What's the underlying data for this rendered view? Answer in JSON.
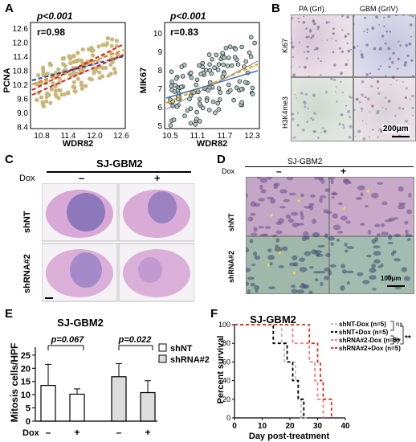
{
  "panels": {
    "A": "A",
    "B": "B",
    "C": "C",
    "D": "D",
    "E": "E",
    "F": "F"
  },
  "panelA": {
    "left": {
      "p": "p<0.001",
      "r": "r=0.98",
      "xlabel": "WDR82",
      "ylabel": "PCNA",
      "xticks": [
        "10.8",
        "11.4",
        "12.0",
        "12.6"
      ],
      "yticks": [
        "12.6",
        "12.0",
        "11.4",
        "10.8",
        "10.2",
        "9.6",
        "9.0",
        "8.4"
      ],
      "dot_color": "#c8b77a"
    },
    "right": {
      "p": "p<0.001",
      "r": "r=0.83",
      "xlabel": "WDR82",
      "ylabel": "MIK67",
      "xticks": [
        "10.5",
        "11.1",
        "11.7",
        "12.3"
      ],
      "yticks": [
        "10",
        "9",
        "8",
        "7",
        "6",
        "5"
      ]
    }
  },
  "panelB": {
    "col1": "PA (GrI)",
    "col2": "GBM (GrIV)",
    "row1": "Ki67",
    "row2": "H3K4me3",
    "scale": "200μm"
  },
  "panelC": {
    "title": "SJ-GBM2",
    "dox": "Dox",
    "minus": "–",
    "plus": "+",
    "row1": "shNT",
    "row2": "shRNA#2"
  },
  "panelD": {
    "title": "SJ-GBM2",
    "dox": "Dox",
    "minus": "–",
    "plus": "+",
    "row1": "shNT",
    "row2": "shRNA#2",
    "scale": "100μm"
  },
  "panelE": {
    "title": "SJ-GBM2",
    "ylabel": "Mitosis cells/HPF",
    "p1": "p=0.067",
    "p2": "p=0.022",
    "dox": "Dox",
    "xtick_labels": [
      "–",
      "+",
      "–",
      "+"
    ],
    "yticks": [
      "0",
      "5",
      "10",
      "15",
      "20",
      "25"
    ],
    "legend": [
      "shNT",
      "shRNA#2"
    ]
  },
  "panelF": {
    "title": "SJ-GBM2",
    "ylabel": "Percent survival",
    "xlabel": "Day post-treatment",
    "xticks": [
      "0",
      "10",
      "20",
      "30",
      "40"
    ],
    "yticks": [
      "0",
      "20",
      "40",
      "60",
      "80",
      "100"
    ],
    "legend": [
      "shNT-Dox (n=5)",
      "shNT+Dox (n=5)",
      "shRNA#2-Dox (n=5)",
      "shRNA#2+Dox (n=5)"
    ],
    "sig_ns": "ns",
    "sig_a": "**",
    "sig_b": "**"
  },
  "chart_data": [
    {
      "type": "bar",
      "categories": [
        "shNT –",
        "shNT +",
        "shRNA#2 –",
        "shRNA#2 +"
      ],
      "values": [
        13.5,
        10.2,
        16.8,
        10.8
      ],
      "errors": [
        8.0,
        2.0,
        5.0,
        4.5
      ],
      "ylim": [
        0,
        28
      ]
    },
    {
      "type": "line",
      "xlim": [
        0,
        40
      ],
      "ylim": [
        0,
        100
      ],
      "series": [
        {
          "name": "shNT-Dox (n=5)",
          "color": "#bbbbbb",
          "x": [
            0,
            13,
            17,
            18,
            22,
            23,
            24,
            26
          ],
          "y": [
            100,
            100,
            80,
            60,
            40,
            20,
            0,
            0
          ]
        },
        {
          "name": "shNT+Dox (n=5)",
          "color": "#000000",
          "x": [
            0,
            13,
            14,
            17,
            19,
            21,
            22,
            23,
            24,
            25
          ],
          "y": [
            100,
            100,
            80,
            80,
            60,
            40,
            40,
            20,
            20,
            0
          ]
        },
        {
          "name": "shRNA#2-Dox (n=5)",
          "color": "#f08080",
          "x": [
            0,
            14,
            21,
            24,
            27,
            29,
            30,
            32
          ],
          "y": [
            100,
            100,
            80,
            80,
            60,
            40,
            20,
            0
          ]
        },
        {
          "name": "shRNA#2+Dox (n=5)",
          "color": "#e03020",
          "x": [
            0,
            24,
            27,
            30,
            31,
            32,
            34,
            35
          ],
          "y": [
            100,
            100,
            80,
            60,
            40,
            20,
            20,
            0
          ]
        }
      ]
    }
  ]
}
